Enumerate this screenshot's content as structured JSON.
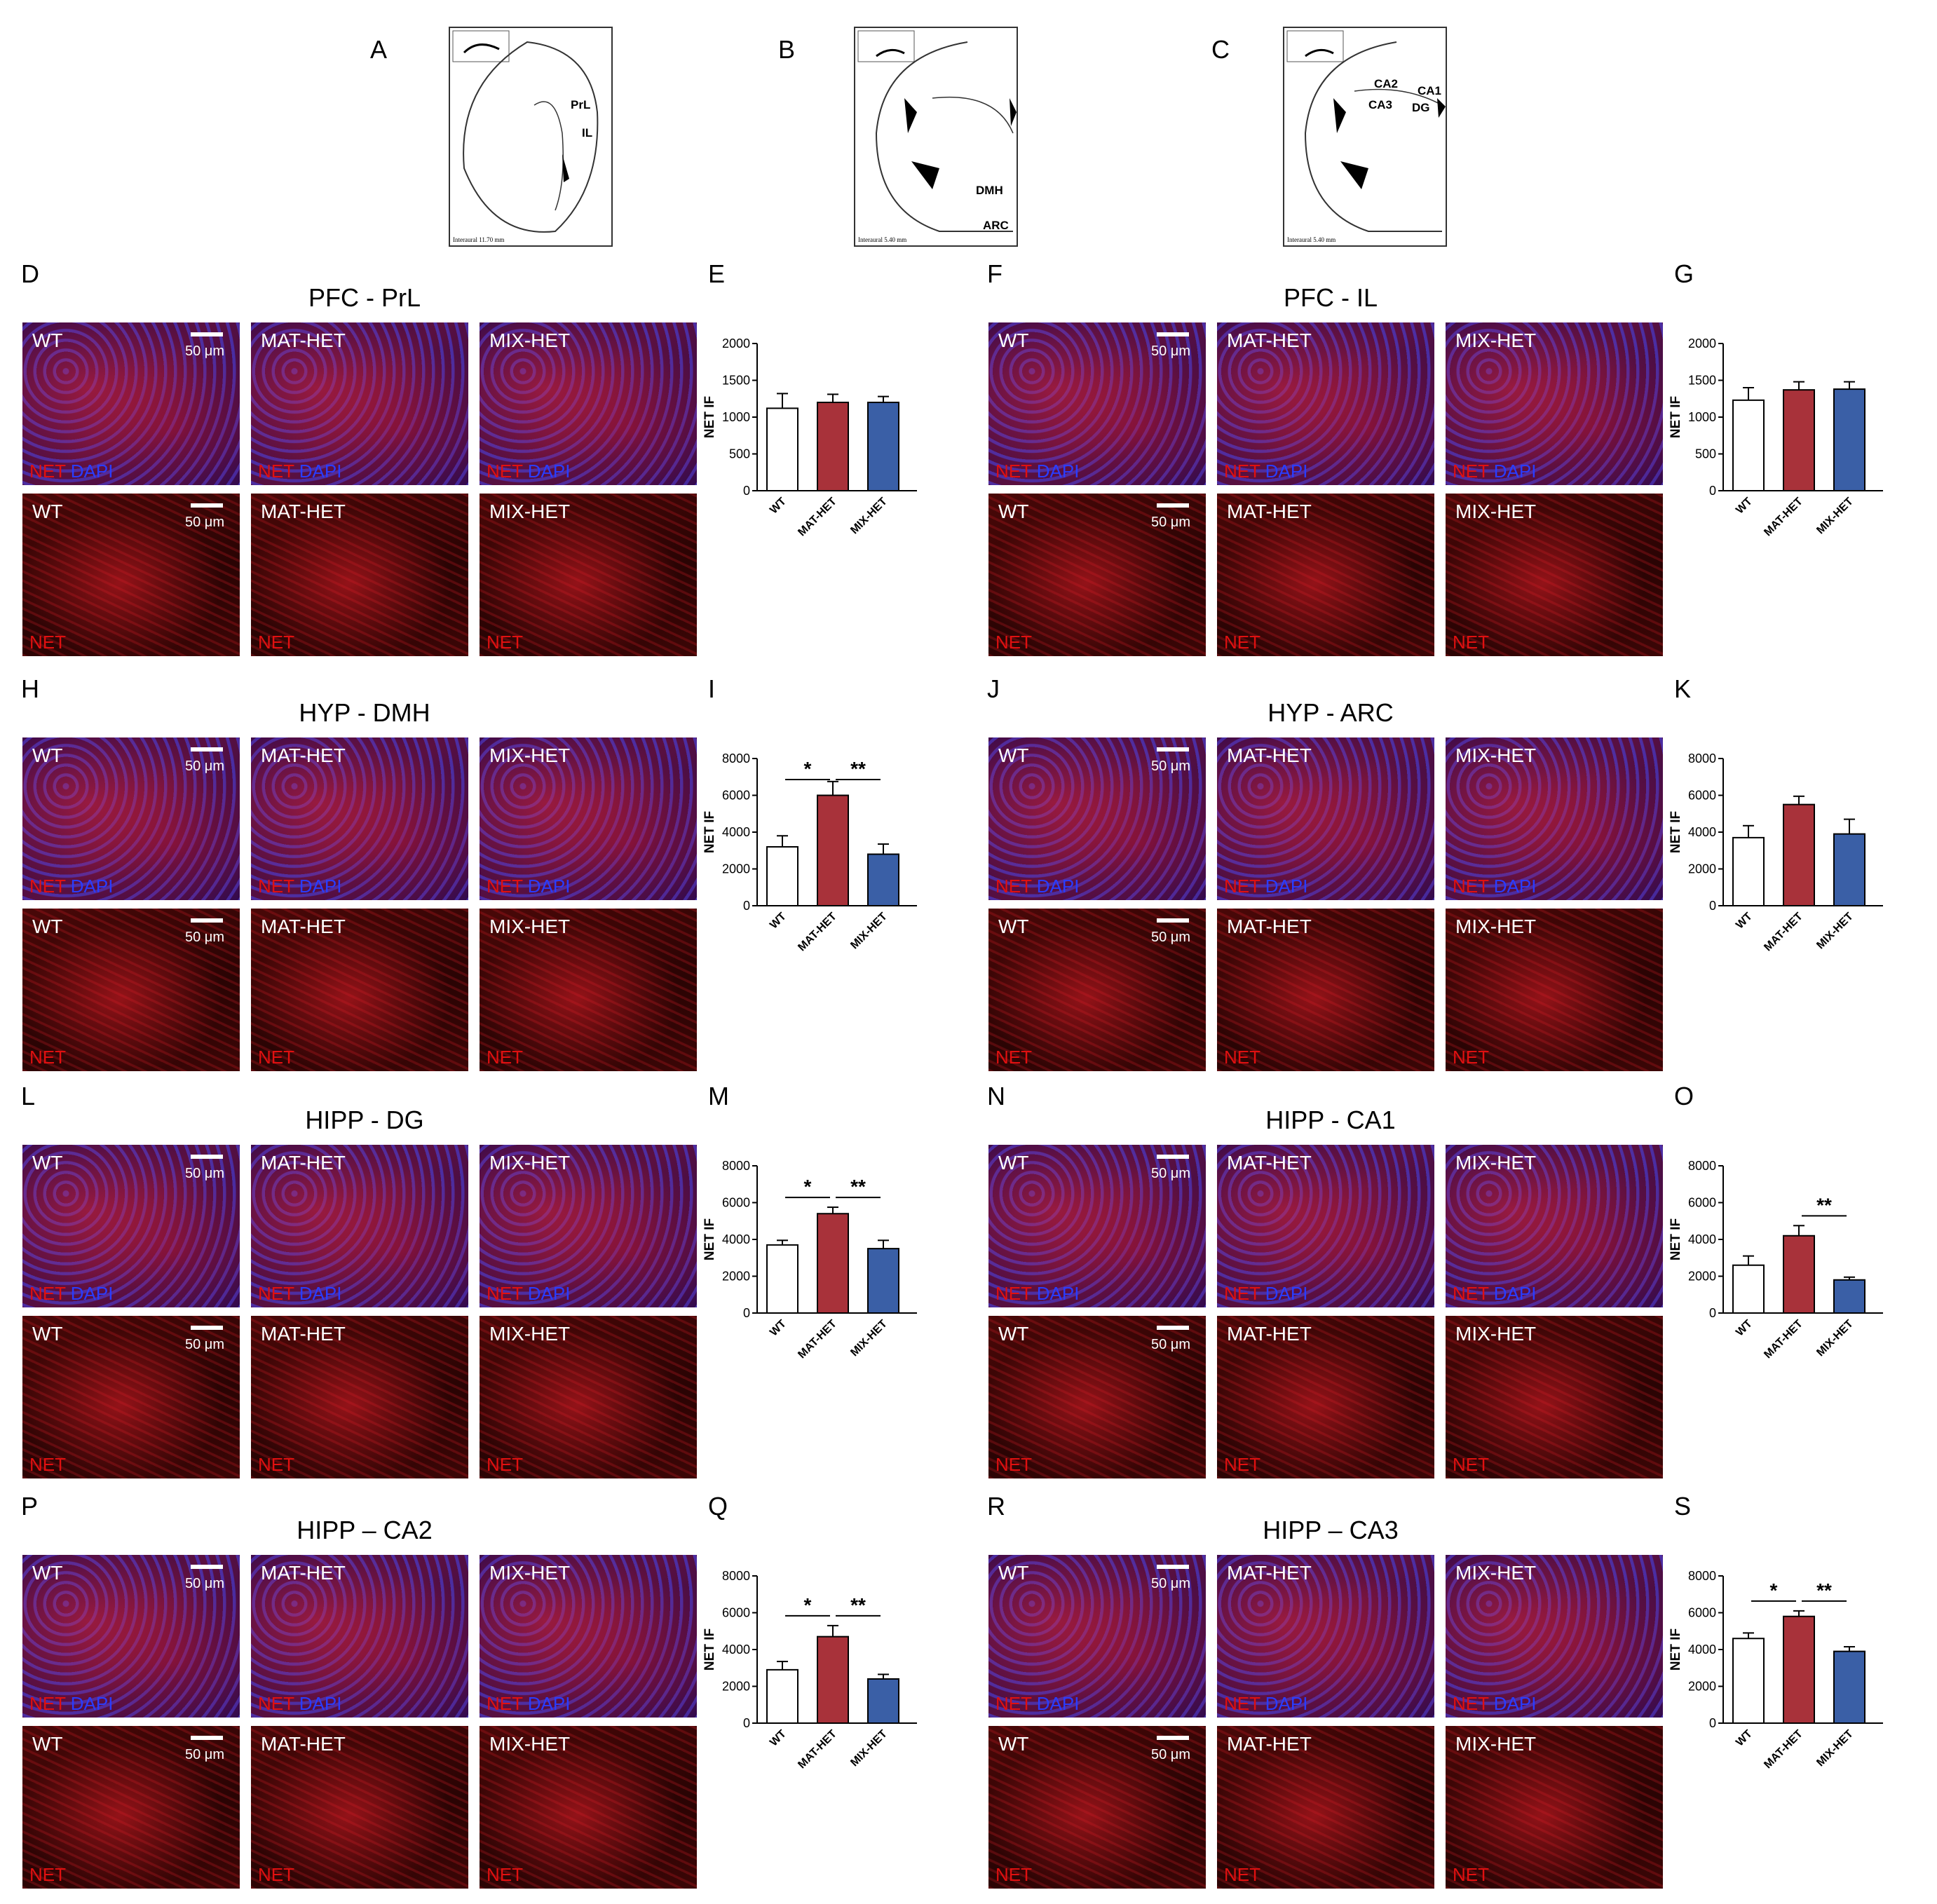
{
  "top_labels": [
    "A",
    "B",
    "C"
  ],
  "atlas": [
    {
      "regions": [
        "PrL",
        "IL"
      ],
      "footer": "Interaural 11.70 mm"
    },
    {
      "regions": [
        "DMH",
        "ARC"
      ],
      "footer": "Interaural 5.40 mm"
    },
    {
      "regions": [
        "CA2",
        "CA1",
        "CA3",
        "DG"
      ],
      "footer": "Interaural 5.40 mm"
    }
  ],
  "groups": [
    "WT",
    "MAT-HET",
    "MIX-HET"
  ],
  "channels": {
    "net": "NET",
    "dapi": "DAPI"
  },
  "scale_bar": "50 μm",
  "y_axis_label": "NET IF",
  "colors": {
    "WT": "#ffffff",
    "MAT-HET": "#a8323a",
    "MIX-HET": "#3a5fa6"
  },
  "sections": [
    {
      "image_label": "D",
      "chart_label": "E",
      "title": "PFC - PrL"
    },
    {
      "image_label": "F",
      "chart_label": "G",
      "title": "PFC - IL"
    },
    {
      "image_label": "H",
      "chart_label": "I",
      "title": "HYP - DMH"
    },
    {
      "image_label": "J",
      "chart_label": "K",
      "title": "HYP - ARC"
    },
    {
      "image_label": "L",
      "chart_label": "M",
      "title": "HIPP - DG"
    },
    {
      "image_label": "N",
      "chart_label": "O",
      "title": "HIPP - CA1"
    },
    {
      "image_label": "P",
      "chart_label": "Q",
      "title": "HIPP – CA2"
    },
    {
      "image_label": "R",
      "chart_label": "S",
      "title": "HIPP – CA3"
    }
  ],
  "chart_data": [
    {
      "panel": "E",
      "type": "bar",
      "categories": [
        "WT",
        "MAT-HET",
        "MIX-HET"
      ],
      "values": [
        1120,
        1200,
        1200
      ],
      "errors": [
        200,
        110,
        80
      ],
      "ylabel": "NET IF",
      "ylim": [
        0,
        2000
      ],
      "yticks": [
        0,
        500,
        1000,
        1500,
        2000
      ],
      "significance": []
    },
    {
      "panel": "G",
      "type": "bar",
      "categories": [
        "WT",
        "MAT-HET",
        "MIX-HET"
      ],
      "values": [
        1230,
        1370,
        1380
      ],
      "errors": [
        170,
        110,
        100
      ],
      "ylabel": "NET IF",
      "ylim": [
        0,
        2000
      ],
      "yticks": [
        0,
        500,
        1000,
        1500,
        2000
      ],
      "significance": []
    },
    {
      "panel": "I",
      "type": "bar",
      "categories": [
        "WT",
        "MAT-HET",
        "MIX-HET"
      ],
      "values": [
        3200,
        6000,
        2800
      ],
      "errors": [
        600,
        750,
        550
      ],
      "ylabel": "NET IF",
      "ylim": [
        0,
        8000
      ],
      "yticks": [
        0,
        2000,
        4000,
        6000,
        8000
      ],
      "significance": [
        {
          "from": 0,
          "to": 1,
          "label": "*"
        },
        {
          "from": 1,
          "to": 2,
          "label": "**"
        }
      ]
    },
    {
      "panel": "K",
      "type": "bar",
      "categories": [
        "WT",
        "MAT-HET",
        "MIX-HET"
      ],
      "values": [
        3700,
        5500,
        3900
      ],
      "errors": [
        650,
        450,
        800
      ],
      "ylabel": "NET IF",
      "ylim": [
        0,
        8000
      ],
      "yticks": [
        0,
        2000,
        4000,
        6000,
        8000
      ],
      "significance": []
    },
    {
      "panel": "M",
      "type": "bar",
      "categories": [
        "WT",
        "MAT-HET",
        "MIX-HET"
      ],
      "values": [
        3700,
        5400,
        3500
      ],
      "errors": [
        250,
        350,
        450
      ],
      "ylabel": "NET IF",
      "ylim": [
        0,
        8000
      ],
      "yticks": [
        0,
        2000,
        4000,
        6000,
        8000
      ],
      "significance": [
        {
          "from": 0,
          "to": 1,
          "label": "*"
        },
        {
          "from": 1,
          "to": 2,
          "label": "**"
        }
      ]
    },
    {
      "panel": "O",
      "type": "bar",
      "categories": [
        "WT",
        "MAT-HET",
        "MIX-HET"
      ],
      "values": [
        2600,
        4200,
        1800
      ],
      "errors": [
        500,
        550,
        150
      ],
      "ylabel": "NET IF",
      "ylim": [
        0,
        8000
      ],
      "yticks": [
        0,
        2000,
        4000,
        6000,
        8000
      ],
      "significance": [
        {
          "from": 1,
          "to": 2,
          "label": "**"
        }
      ]
    },
    {
      "panel": "Q",
      "type": "bar",
      "categories": [
        "WT",
        "MAT-HET",
        "MIX-HET"
      ],
      "values": [
        2900,
        4700,
        2400
      ],
      "errors": [
        450,
        600,
        250
      ],
      "ylabel": "NET IF",
      "ylim": [
        0,
        8000
      ],
      "yticks": [
        0,
        2000,
        4000,
        6000,
        8000
      ],
      "significance": [
        {
          "from": 0,
          "to": 1,
          "label": "*"
        },
        {
          "from": 1,
          "to": 2,
          "label": "**"
        }
      ]
    },
    {
      "panel": "S",
      "type": "bar",
      "categories": [
        "WT",
        "MAT-HET",
        "MIX-HET"
      ],
      "values": [
        4600,
        5800,
        3900
      ],
      "errors": [
        300,
        300,
        250
      ],
      "ylabel": "NET IF",
      "ylim": [
        0,
        8000
      ],
      "yticks": [
        0,
        2000,
        4000,
        6000,
        8000
      ],
      "significance": [
        {
          "from": 0,
          "to": 1,
          "label": "*"
        },
        {
          "from": 1,
          "to": 2,
          "label": "**"
        }
      ]
    }
  ]
}
